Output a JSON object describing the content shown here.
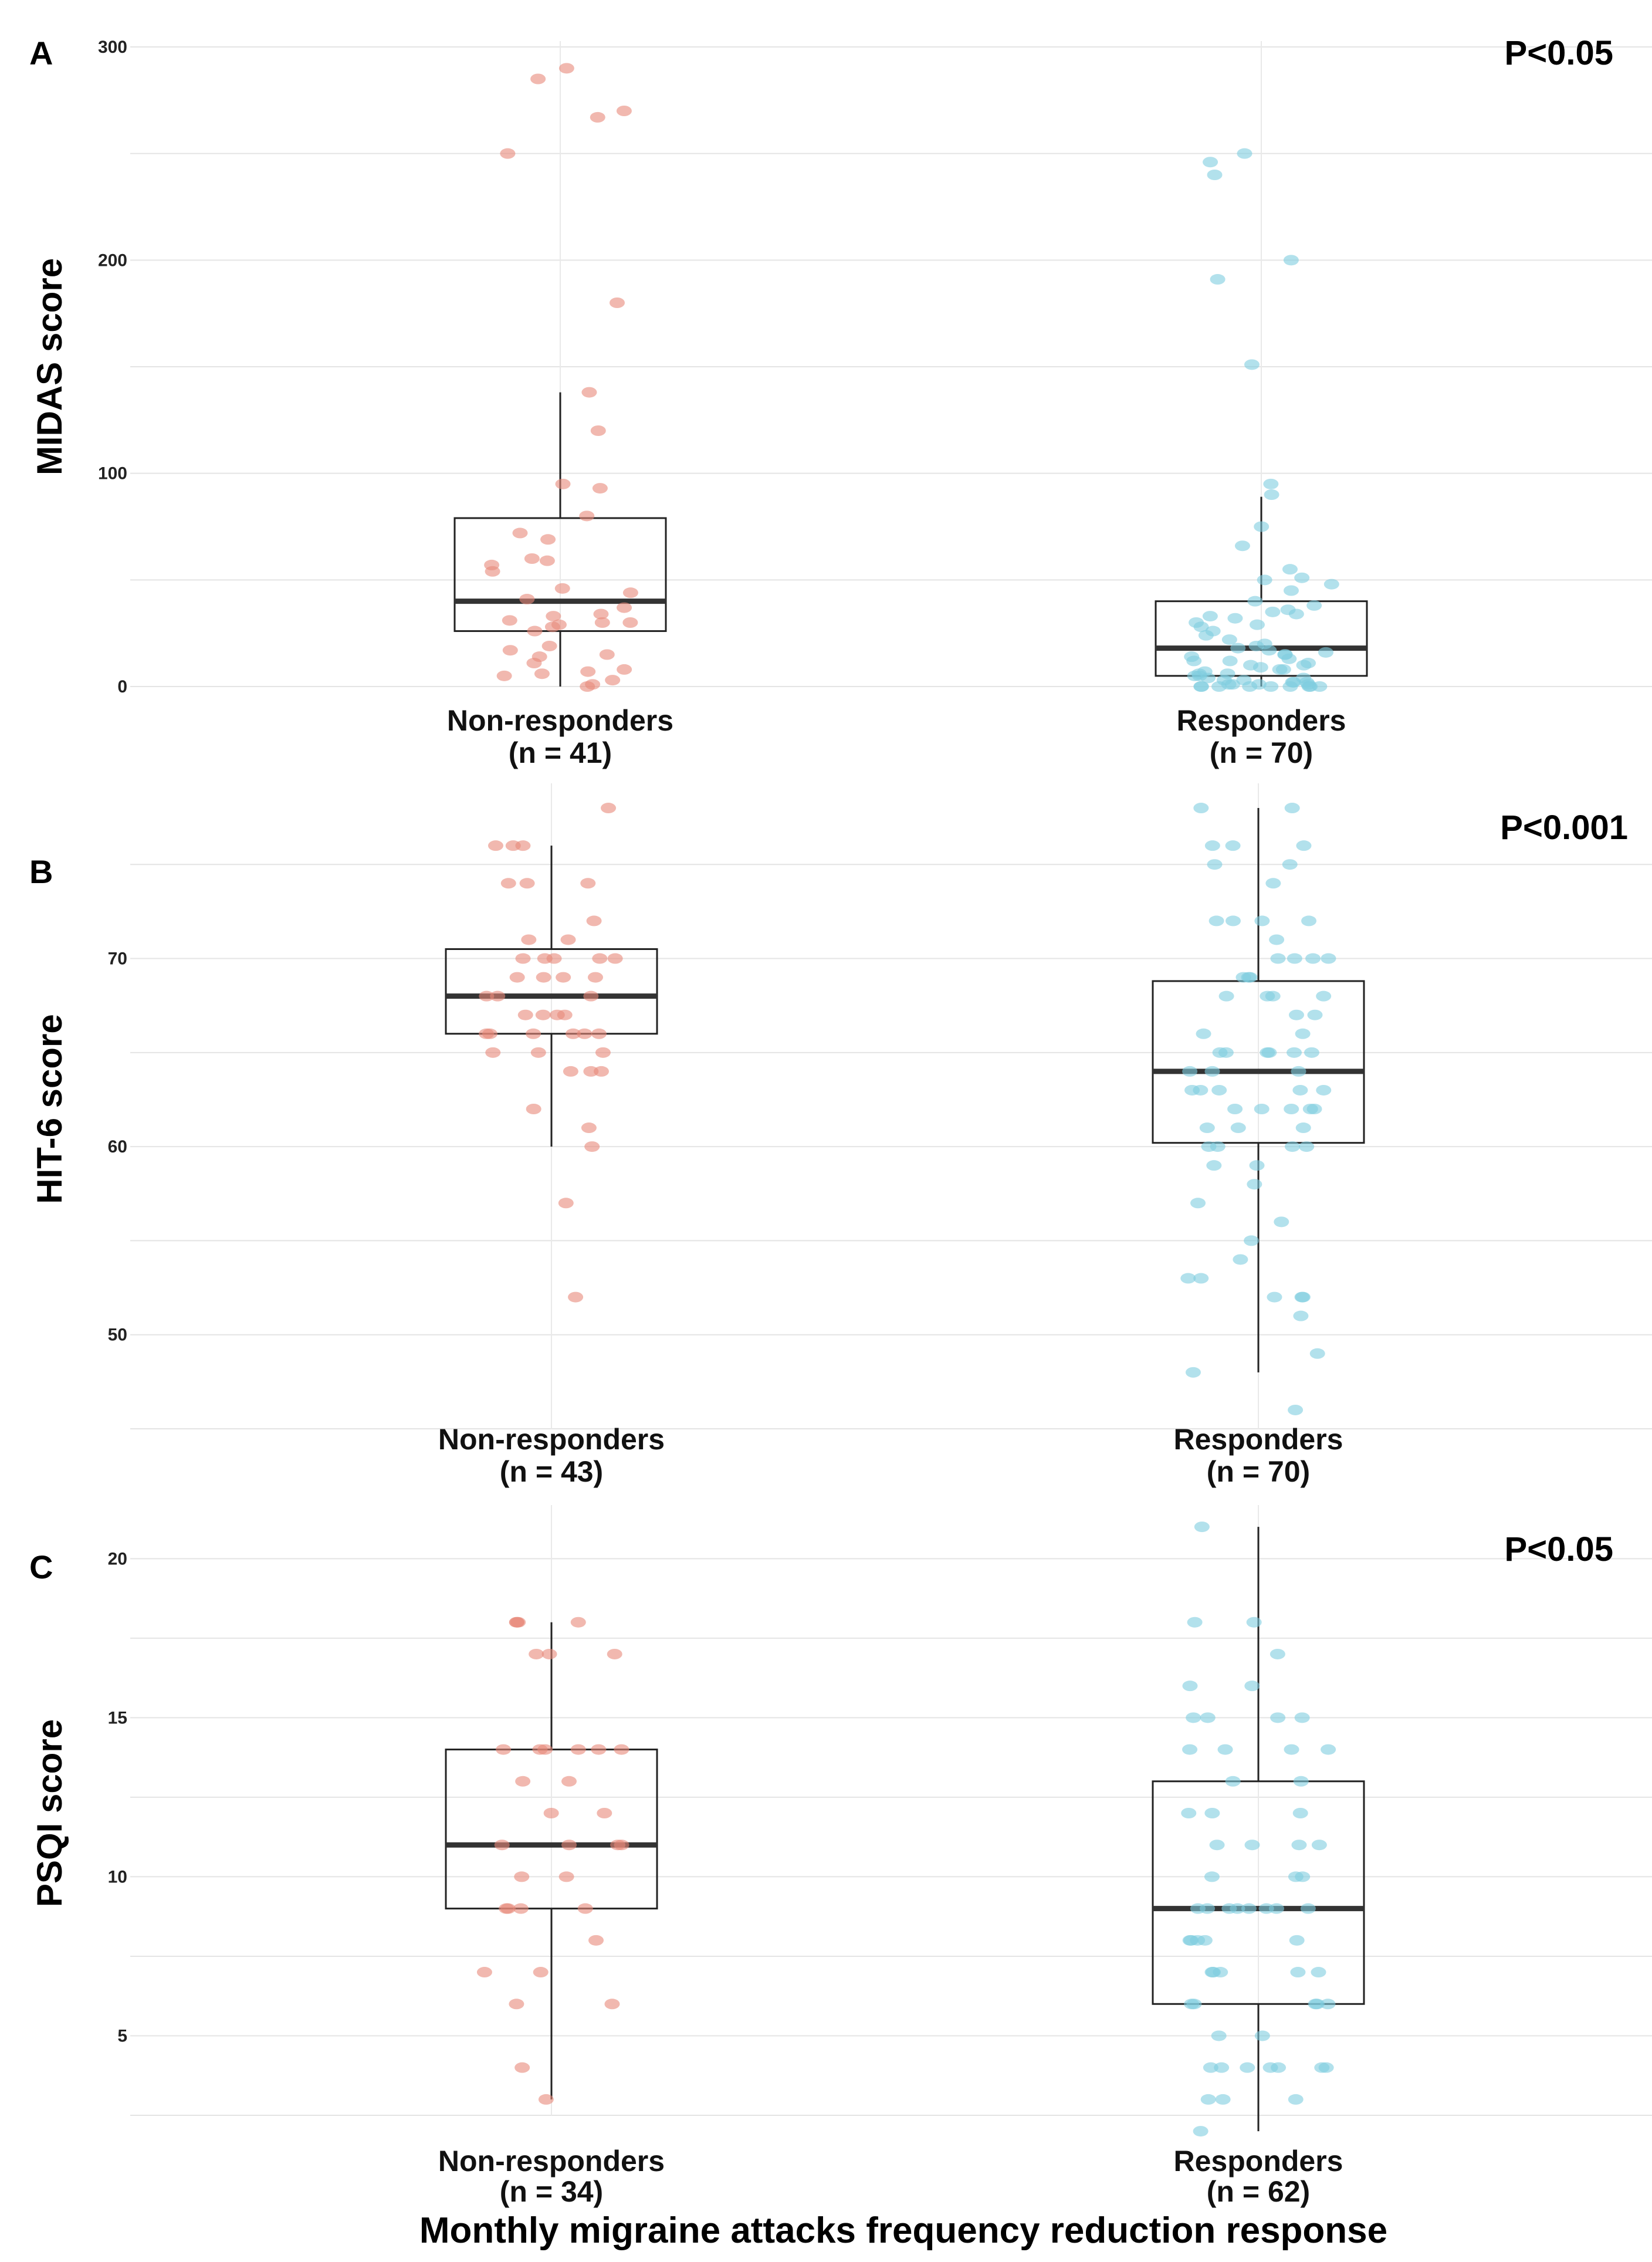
{
  "figure": {
    "x_axis_title": "Monthly migraine attacks frequency reduction response"
  },
  "colors": {
    "non_responders": "#e8897a",
    "responders": "#7ecde0"
  },
  "chart_data": [
    {
      "type": "box",
      "panel": "A",
      "ylabel": "MIDAS score",
      "p_value": "P<0.05",
      "ylim": [
        0,
        300
      ],
      "yticks": [
        0,
        100,
        200,
        300
      ],
      "minor_grid": [
        50,
        150,
        250
      ],
      "groups": [
        {
          "name": "Non-responders",
          "n_label": "(n = 41)",
          "color_key": "non_responders",
          "q1": 26,
          "median": 40,
          "q3": 79,
          "whisker_low": 0,
          "whisker_high": 138,
          "points": [
            290,
            285,
            270,
            267,
            250,
            180,
            138,
            120,
            95,
            93,
            80,
            72,
            69,
            60,
            59,
            57,
            54,
            46,
            44,
            41,
            37,
            34,
            33,
            31,
            30,
            30,
            29,
            28,
            26,
            19,
            17,
            15,
            14,
            11,
            8,
            7,
            6,
            5,
            3,
            1,
            0
          ]
        },
        {
          "name": "Responders",
          "n_label": "(n = 70)",
          "color_key": "responders",
          "q1": 5,
          "median": 18,
          "q3": 40,
          "whisker_low": 0,
          "whisker_high": 89,
          "points": [
            250,
            246,
            240,
            200,
            191,
            151,
            95,
            90,
            75,
            66,
            55,
            51,
            50,
            48,
            45,
            40,
            38,
            36,
            35,
            34,
            33,
            32,
            30,
            29,
            28,
            26,
            24,
            22,
            20,
            19,
            18,
            17,
            16,
            15,
            15,
            14,
            13,
            12,
            12,
            11,
            10,
            10,
            9,
            8,
            8,
            7,
            6,
            6,
            5,
            5,
            4,
            4,
            3,
            3,
            2,
            2,
            2,
            1,
            1,
            1,
            1,
            0,
            0,
            0,
            0,
            0,
            0,
            0,
            0,
            0
          ]
        }
      ]
    },
    {
      "type": "box",
      "panel": "B",
      "ylabel": "HIT-6 score",
      "p_value": "P<0.001",
      "ylim": [
        45,
        79
      ],
      "yticks": [
        50,
        60,
        70
      ],
      "minor_grid": [
        45,
        55,
        65,
        75
      ],
      "groups": [
        {
          "name": "Non-responders",
          "n_label": "(n = 43)",
          "color_key": "non_responders",
          "q1": 66,
          "median": 68,
          "q3": 70.5,
          "whisker_low": 60,
          "whisker_high": 76,
          "points": [
            78,
            76,
            76,
            76,
            74,
            74,
            74,
            72,
            71,
            71,
            70,
            70,
            70,
            70,
            70,
            69,
            69,
            69,
            69,
            68,
            68,
            68,
            67,
            67,
            67,
            67,
            66,
            66,
            66,
            66,
            66,
            66,
            65,
            65,
            65,
            64,
            64,
            64,
            62,
            61,
            60,
            57,
            52
          ]
        },
        {
          "name": "Responders",
          "n_label": "(n = 70)",
          "color_key": "responders",
          "q1": 60.2,
          "median": 64,
          "q3": 68.8,
          "whisker_low": 48,
          "whisker_high": 78,
          "points": [
            78,
            78,
            76,
            76,
            76,
            75,
            75,
            74,
            72,
            72,
            72,
            72,
            71,
            70,
            70,
            70,
            69,
            69,
            69,
            68,
            68,
            68,
            67,
            67,
            66,
            65,
            65,
            65,
            65,
            65,
            65,
            64,
            64,
            63,
            63,
            63,
            63,
            63,
            62,
            62,
            62,
            62,
            61,
            61,
            61,
            60,
            60,
            60,
            60,
            59,
            59,
            58,
            57,
            56,
            55,
            54,
            53,
            53,
            52,
            52,
            52,
            51,
            49,
            48,
            46,
            62,
            64,
            66,
            68,
            70
          ]
        }
      ]
    },
    {
      "type": "box",
      "panel": "C",
      "ylabel": "PSQI score",
      "p_value": "P<0.05",
      "ylim": [
        2.5,
        21.5
      ],
      "yticks": [
        5,
        10,
        15,
        20
      ],
      "minor_grid": [
        2.5,
        7.5,
        12.5,
        17.5
      ],
      "groups": [
        {
          "name": "Non-responders",
          "n_label": "(n = 34)",
          "color_key": "non_responders",
          "q1": 9,
          "median": 11,
          "q3": 14,
          "whisker_low": 3,
          "whisker_high": 18,
          "points": [
            18,
            18,
            18,
            18,
            17,
            17,
            17,
            14,
            14,
            14,
            14,
            14,
            13,
            13,
            12,
            12,
            11,
            11,
            11,
            11,
            10,
            10,
            9,
            9,
            9,
            9,
            8,
            7,
            7,
            6,
            6,
            4,
            3,
            14
          ]
        },
        {
          "name": "Responders",
          "n_label": "(n = 62)",
          "color_key": "responders",
          "q1": 6,
          "median": 9,
          "q3": 13,
          "whisker_low": 2,
          "whisker_high": 21,
          "points": [
            21,
            18,
            18,
            17,
            16,
            16,
            15,
            15,
            15,
            15,
            14,
            14,
            14,
            14,
            13,
            13,
            12,
            12,
            11,
            11,
            11,
            10,
            10,
            9,
            9,
            9,
            9,
            9,
            9,
            9,
            8,
            8,
            8,
            8,
            7,
            7,
            7,
            7,
            6,
            6,
            6,
            6,
            5,
            4,
            4,
            4,
            4,
            4,
            4,
            4,
            3,
            3,
            3,
            2,
            10,
            8,
            7,
            6,
            9,
            11,
            12,
            5
          ]
        }
      ]
    }
  ]
}
